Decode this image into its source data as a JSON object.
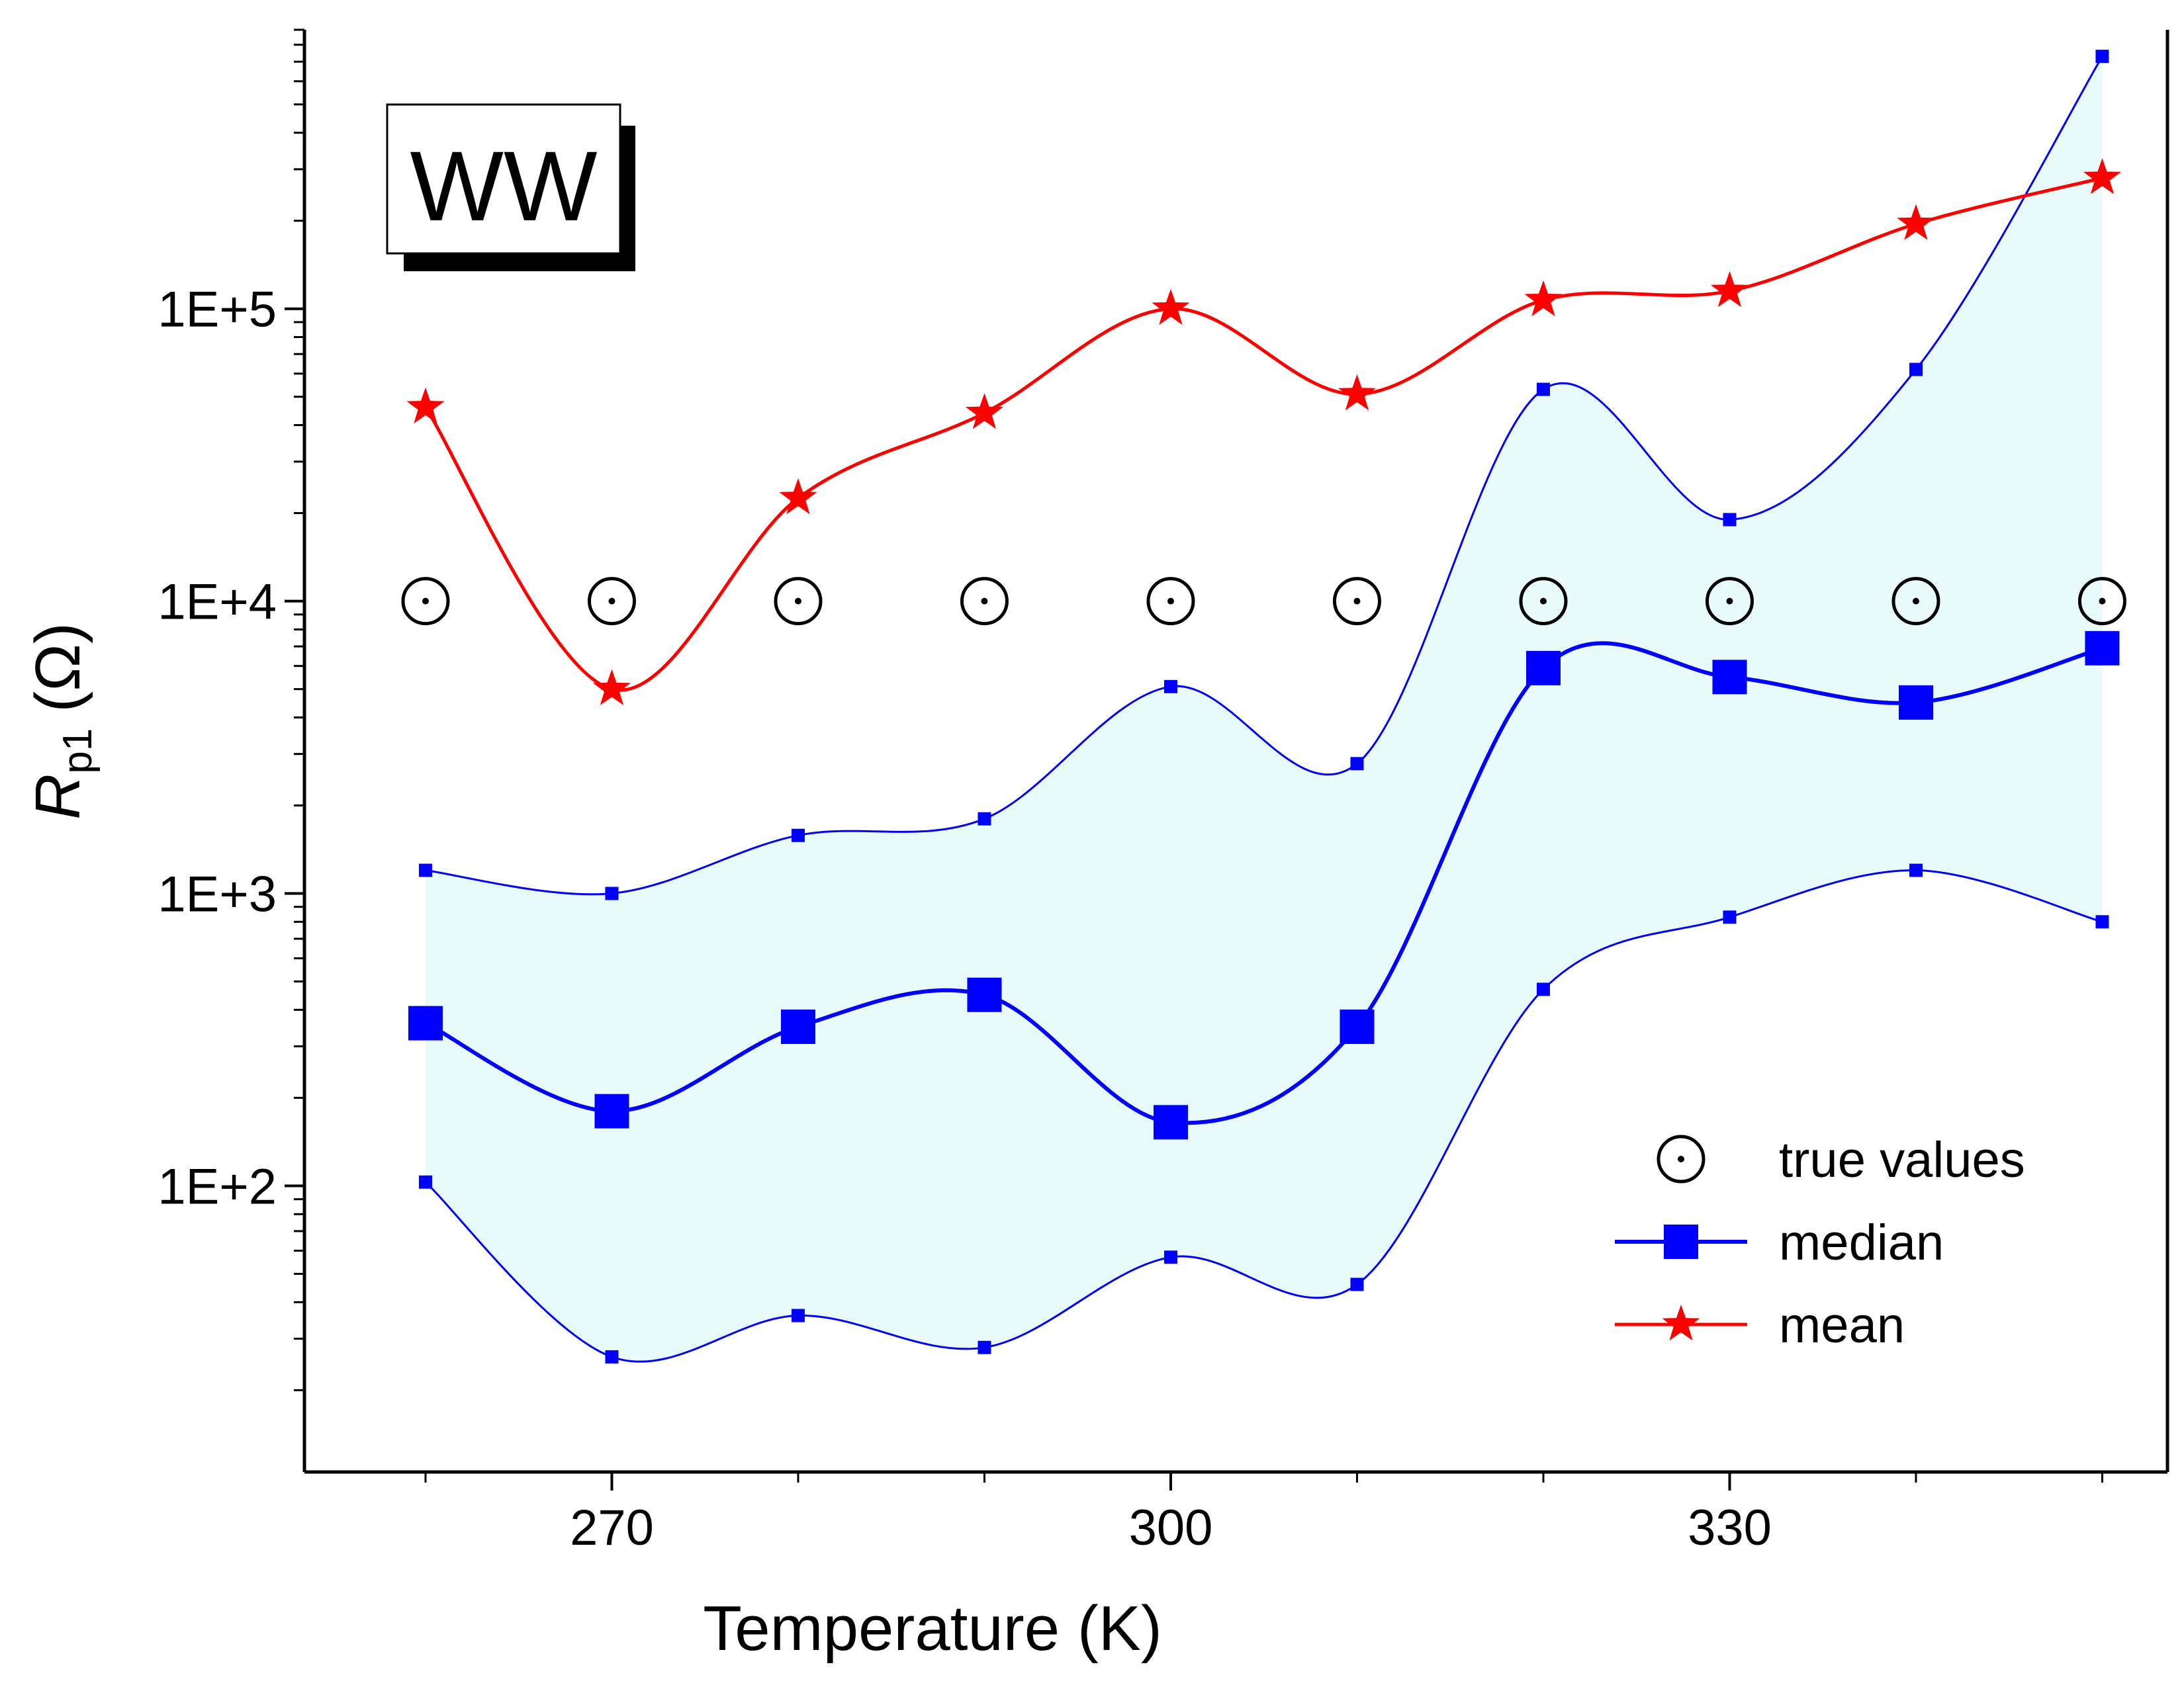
{
  "chart_data": {
    "type": "line",
    "xlabel": "Temperature (K)",
    "ylabel": {
      "main": "R",
      "sub": "p1",
      "unit": "(Ω)"
    },
    "yscale": "log",
    "xlim": [
      253.5,
      353.5
    ],
    "ylim": [
      10.5,
      900000
    ],
    "xticks": [
      270,
      300,
      330
    ],
    "yticks": [
      {
        "value": 100,
        "label": "1E+2"
      },
      {
        "value": 1000,
        "label": "1E+3"
      },
      {
        "value": 10000,
        "label": "1E+4"
      },
      {
        "value": 100000,
        "label": "1E+5"
      }
    ],
    "grid": false,
    "legend_position": "bottom-right",
    "annotation": "WW",
    "x": [
      260,
      270,
      280,
      290,
      300,
      310,
      320,
      330,
      340,
      350
    ],
    "series": [
      {
        "name": "true values",
        "marker": "circle-dot",
        "color": "#000000",
        "values": [
          10000,
          10000,
          10000,
          10000,
          10000,
          10000,
          10000,
          10000,
          10000,
          10000
        ]
      },
      {
        "name": "median",
        "marker": "square",
        "color": "#0000ff",
        "values": [
          360,
          180,
          350,
          450,
          165,
          350,
          5900,
          5500,
          4500,
          6900
        ]
      },
      {
        "name": "mean",
        "marker": "star",
        "color": "#ff0000",
        "values": [
          46000,
          5000,
          22500,
          44000,
          100000,
          51000,
          107000,
          115000,
          195000,
          280000
        ]
      }
    ],
    "band": {
      "color": "#e8fafa",
      "upper": [
        1200,
        1000,
        1580,
        1800,
        5100,
        2780,
        53000,
        19000,
        62000,
        730000
      ],
      "lower": [
        103,
        26,
        36,
        28,
        57,
        46,
        470,
        830,
        1200,
        800
      ]
    }
  }
}
